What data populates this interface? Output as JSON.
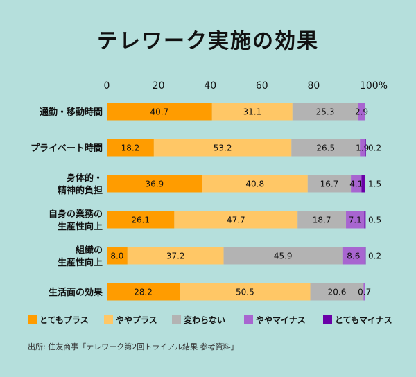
{
  "chart_data": {
    "type": "bar",
    "orientation": "horizontal",
    "stacked": true,
    "title": "テレワーク実施の効果",
    "xlim": [
      0,
      100
    ],
    "xticks": [
      "0",
      "20",
      "40",
      "60",
      "80",
      "100%"
    ],
    "xtick_values": [
      0,
      20,
      40,
      60,
      80,
      100
    ],
    "categories": [
      [
        "通勤・移動時間"
      ],
      [
        "プライベート時間"
      ],
      [
        "身体的・",
        "精神的負担"
      ],
      [
        "自身の業務の",
        "生産性向上"
      ],
      [
        "組織の",
        "生産性向上"
      ],
      [
        "生活面の効果"
      ]
    ],
    "series": [
      {
        "name": "とてもプラス",
        "color": "#ff9c00",
        "values": [
          40.7,
          18.2,
          36.9,
          26.1,
          8.0,
          28.2
        ]
      },
      {
        "name": "ややプラス",
        "color": "#ffc766",
        "values": [
          31.1,
          53.2,
          40.8,
          47.7,
          37.2,
          50.5
        ]
      },
      {
        "name": "変わらない",
        "color": "#b3b3b3",
        "values": [
          25.3,
          26.5,
          16.7,
          18.7,
          45.9,
          20.6
        ]
      },
      {
        "name": "ややマイナス",
        "color": "#a865d0",
        "values": [
          2.9,
          1.9,
          4.1,
          7.1,
          8.6,
          0.7
        ]
      },
      {
        "name": "とてもマイナス",
        "color": "#6a00a8",
        "values": [
          null,
          0.2,
          1.5,
          0.5,
          0.2,
          null
        ]
      }
    ],
    "legend_position": "bottom",
    "grid": false
  },
  "source": "出所: 住友商事「テレワーク第2回トライアル結果 参考資料」"
}
